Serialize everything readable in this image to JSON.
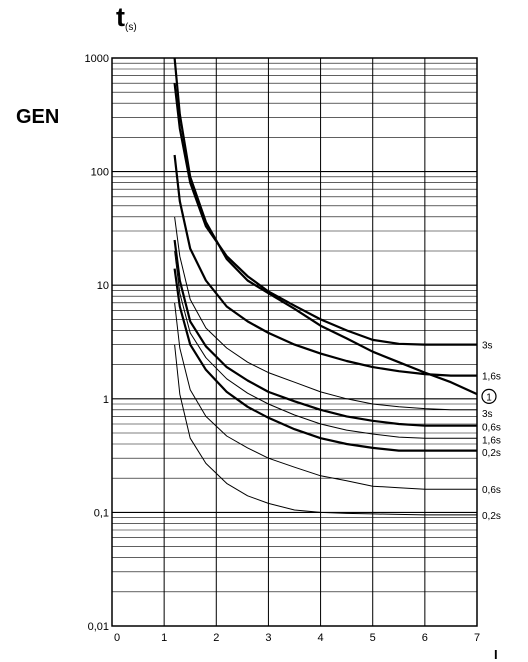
{
  "chart_data": {
    "type": "line",
    "title": "",
    "side_label": "GEN",
    "ylabel_main": "t",
    "ylabel_sub": "(s)",
    "xlabel_partial": "I",
    "x_ticks": [
      "0",
      "1",
      "2",
      "3",
      "4",
      "5",
      "6",
      "7"
    ],
    "y_ticks": [
      "1000",
      "100",
      "10",
      "1",
      "0,1",
      "0,01"
    ],
    "y_tick_values": [
      1000,
      100,
      10,
      1,
      0.1,
      0.01
    ],
    "xlim": [
      0,
      7
    ],
    "ylim": [
      0.01,
      1000
    ],
    "yscale": "log",
    "grid": true,
    "series": [
      {
        "name": "3s",
        "weight": "heavy",
        "x": [
          1.2,
          1.3,
          1.5,
          1.8,
          2.2,
          2.6,
          3.0,
          3.5,
          4.0,
          4.5,
          5.0,
          5.5,
          6.0,
          6.5,
          7.0
        ],
        "y": [
          600,
          240,
          80,
          33,
          18,
          12,
          8.8,
          6.6,
          5.0,
          4.0,
          3.3,
          3.05,
          3.0,
          3.0,
          3.0
        ]
      },
      {
        "name": "1,6s",
        "weight": "heavy",
        "x": [
          1.2,
          1.3,
          1.5,
          1.8,
          2.2,
          2.6,
          3.0,
          3.5,
          4.0,
          4.5,
          5.0,
          5.5,
          6.0,
          6.5,
          7.0
        ],
        "y": [
          140,
          55,
          21,
          11,
          6.5,
          4.8,
          3.8,
          3.0,
          2.5,
          2.15,
          1.9,
          1.75,
          1.65,
          1.6,
          1.6
        ]
      },
      {
        "name": "1",
        "weight": "heavy",
        "x": [
          1.2,
          1.3,
          1.5,
          1.8,
          2.2,
          2.6,
          3.0,
          3.5,
          4.0,
          4.5,
          5.0,
          5.5,
          6.0,
          6.5,
          7.0
        ],
        "y": [
          1000,
          320,
          90,
          36,
          17,
          11,
          8.5,
          6.2,
          4.4,
          3.4,
          2.6,
          2.1,
          1.7,
          1.4,
          1.1
        ]
      },
      {
        "name": "3s",
        "weight": "light",
        "x": [
          1.2,
          1.3,
          1.5,
          1.8,
          2.2,
          2.6,
          3.0,
          3.5,
          4.0,
          4.5,
          5.0,
          5.5,
          6.0,
          6.5,
          7.0
        ],
        "y": [
          40,
          18,
          7.5,
          4.2,
          2.8,
          2.1,
          1.7,
          1.4,
          1.15,
          1.0,
          0.9,
          0.85,
          0.82,
          0.8,
          0.8
        ]
      },
      {
        "name": "0,6s",
        "weight": "heavy",
        "x": [
          1.2,
          1.3,
          1.5,
          1.8,
          2.2,
          2.6,
          3.0,
          3.5,
          4.0,
          4.5,
          5.0,
          5.5,
          6.0,
          6.5,
          7.0
        ],
        "y": [
          25,
          11,
          4.8,
          2.9,
          1.9,
          1.45,
          1.15,
          0.95,
          0.8,
          0.7,
          0.64,
          0.6,
          0.58,
          0.58,
          0.58
        ]
      },
      {
        "name": "1,6s",
        "weight": "light",
        "x": [
          1.2,
          1.3,
          1.5,
          1.8,
          2.2,
          2.6,
          3.0,
          3.5,
          4.0,
          4.5,
          5.0,
          5.5,
          6.0,
          6.5,
          7.0
        ],
        "y": [
          20,
          8.5,
          3.8,
          2.3,
          1.5,
          1.12,
          0.9,
          0.72,
          0.6,
          0.53,
          0.49,
          0.46,
          0.45,
          0.45,
          0.45
        ]
      },
      {
        "name": "0,2s",
        "weight": "heavy",
        "x": [
          1.2,
          1.3,
          1.5,
          1.8,
          2.2,
          2.6,
          3.0,
          3.5,
          4.0,
          4.5,
          5.0,
          5.5,
          6.0,
          6.5,
          7.0
        ],
        "y": [
          14,
          6.5,
          3.0,
          1.8,
          1.15,
          0.85,
          0.68,
          0.54,
          0.45,
          0.4,
          0.37,
          0.35,
          0.35,
          0.35,
          0.35
        ]
      },
      {
        "name": "0,6s",
        "weight": "light",
        "x": [
          1.2,
          1.3,
          1.5,
          1.8,
          2.2,
          2.6,
          3.0,
          3.5,
          4.0,
          4.5,
          5.0,
          5.5,
          6.0,
          6.5,
          7.0
        ],
        "y": [
          7,
          2.8,
          1.2,
          0.7,
          0.47,
          0.37,
          0.3,
          0.25,
          0.21,
          0.19,
          0.17,
          0.165,
          0.16,
          0.16,
          0.16
        ]
      },
      {
        "name": "0,2s",
        "weight": "light",
        "x": [
          1.2,
          1.3,
          1.5,
          1.8,
          2.2,
          2.6,
          3.0,
          3.5,
          4.0,
          4.5,
          5.0,
          5.5,
          6.0,
          6.5,
          7.0
        ],
        "y": [
          3,
          1.1,
          0.45,
          0.27,
          0.18,
          0.14,
          0.12,
          0.105,
          0.1,
          0.098,
          0.097,
          0.096,
          0.095,
          0.095,
          0.095
        ]
      }
    ],
    "end_labels": [
      {
        "text": "3s",
        "y": 3.0
      },
      {
        "text": "1,6s",
        "y": 1.6
      },
      {
        "text": "1",
        "y": 1.05,
        "circled": true
      },
      {
        "text": "3s",
        "y": 0.75
      },
      {
        "text": "0,6s",
        "y": 0.57
      },
      {
        "text": "1,6s",
        "y": 0.44
      },
      {
        "text": "0,2s",
        "y": 0.34
      },
      {
        "text": "0,6s",
        "y": 0.16
      },
      {
        "text": "0,2s",
        "y": 0.095
      }
    ]
  }
}
